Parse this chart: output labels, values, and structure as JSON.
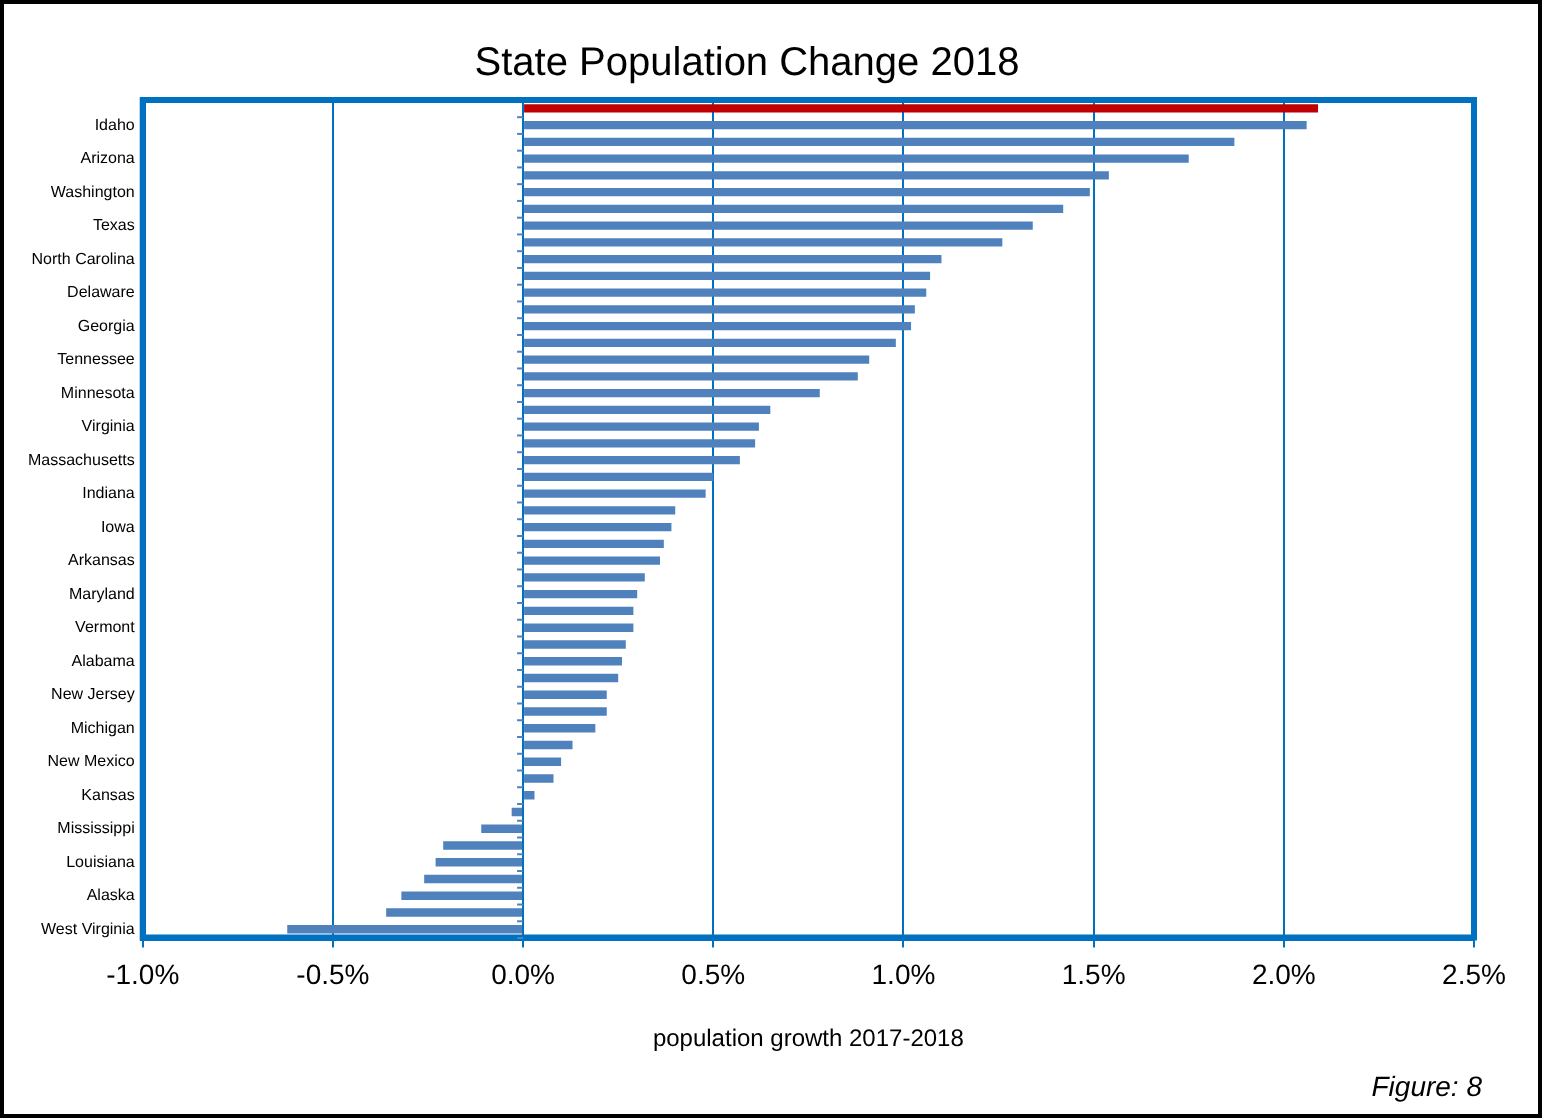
{
  "chart_data": {
    "type": "bar",
    "orientation": "horizontal",
    "title": "State Population Change 2018",
    "xlabel": "population growth 2017-2018",
    "annotations": [
      "Figure: 8"
    ],
    "categories": [
      null,
      "Idaho",
      null,
      "Arizona",
      null,
      "Washington",
      null,
      "Texas",
      null,
      "North Carolina",
      null,
      "Delaware",
      null,
      "Georgia",
      null,
      "Tennessee",
      null,
      "Minnesota",
      null,
      "Virginia",
      null,
      "Massachusetts",
      null,
      "Indiana",
      null,
      "Iowa",
      null,
      "Arkansas",
      null,
      "Maryland",
      null,
      "Vermont",
      null,
      "Alabama",
      null,
      "New Jersey",
      null,
      "Michigan",
      null,
      "New Mexico",
      null,
      "Kansas",
      null,
      "Mississippi",
      null,
      "Louisiana",
      null,
      "Alaska",
      null,
      "West Virginia"
    ],
    "values": [
      2.09,
      2.06,
      1.87,
      1.75,
      1.54,
      1.49,
      1.42,
      1.34,
      1.26,
      1.1,
      1.07,
      1.06,
      1.03,
      1.02,
      0.98,
      0.91,
      0.88,
      0.78,
      0.65,
      0.62,
      0.61,
      0.57,
      0.5,
      0.48,
      0.4,
      0.39,
      0.37,
      0.36,
      0.32,
      0.3,
      0.29,
      0.29,
      0.27,
      0.26,
      0.25,
      0.22,
      0.22,
      0.19,
      0.13,
      0.1,
      0.08,
      0.03,
      -0.03,
      -0.11,
      -0.21,
      -0.23,
      -0.26,
      -0.32,
      -0.36,
      -0.62
    ],
    "colors": [
      "#c00000",
      "#4f81bd",
      "#4f81bd",
      "#4f81bd",
      "#4f81bd",
      "#4f81bd",
      "#4f81bd",
      "#4f81bd",
      "#4f81bd",
      "#4f81bd",
      "#4f81bd",
      "#4f81bd",
      "#4f81bd",
      "#4f81bd",
      "#4f81bd",
      "#4f81bd",
      "#4f81bd",
      "#4f81bd",
      "#4f81bd",
      "#4f81bd",
      "#4f81bd",
      "#4f81bd",
      "#4f81bd",
      "#4f81bd",
      "#4f81bd",
      "#4f81bd",
      "#4f81bd",
      "#4f81bd",
      "#4f81bd",
      "#4f81bd",
      "#4f81bd",
      "#4f81bd",
      "#4f81bd",
      "#4f81bd",
      "#4f81bd",
      "#4f81bd",
      "#4f81bd",
      "#4f81bd",
      "#4f81bd",
      "#4f81bd",
      "#4f81bd",
      "#4f81bd",
      "#4f81bd",
      "#4f81bd",
      "#4f81bd",
      "#4f81bd",
      "#4f81bd",
      "#4f81bd",
      "#4f81bd",
      "#4f81bd"
    ],
    "xlim": [
      -1,
      2.5
    ],
    "xticks": [
      {
        "value": -1,
        "label": "-1.0%"
      },
      {
        "value": -0.5,
        "label": "-0.5%"
      },
      {
        "value": 0,
        "label": "0.0%"
      },
      {
        "value": 0.5,
        "label": "0.5%"
      },
      {
        "value": 1,
        "label": "1.0%"
      },
      {
        "value": 1.5,
        "label": "1.5%"
      },
      {
        "value": 2,
        "label": "2.0%"
      },
      {
        "value": 2.5,
        "label": "2.5%"
      }
    ],
    "grid": "x",
    "legend": false
  }
}
